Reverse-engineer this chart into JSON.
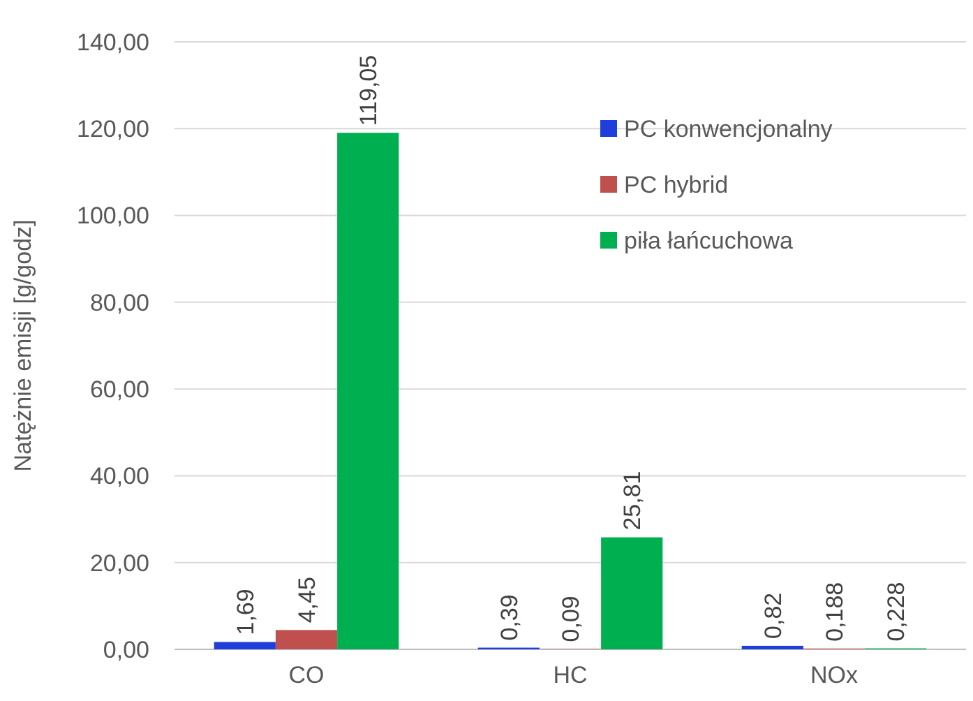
{
  "chart_data": {
    "type": "bar",
    "ylabel": "Natężnie emisji [g/godz]",
    "categories": [
      "CO",
      "HC",
      "NOx"
    ],
    "series": [
      {
        "name": "PC konwencjonalny",
        "color": "#1f3fdc",
        "values": [
          1.69,
          0.39,
          0.82
        ],
        "value_labels": [
          "1,69",
          "0,39",
          "0,82"
        ]
      },
      {
        "name": "PC hybrid",
        "color": "#c0504d",
        "values": [
          4.45,
          0.09,
          0.188
        ],
        "value_labels": [
          "4,45",
          "0,09",
          "0,188"
        ]
      },
      {
        "name": "piła łańcuchowa",
        "color": "#00b050",
        "values": [
          119.05,
          25.81,
          0.228
        ],
        "value_labels": [
          "119,05",
          "25,81",
          "0,228"
        ]
      }
    ],
    "ylim": [
      0,
      140
    ],
    "yticks": [
      {
        "value": 0,
        "label": "0,00"
      },
      {
        "value": 20,
        "label": "20,00"
      },
      {
        "value": 40,
        "label": "40,00"
      },
      {
        "value": 60,
        "label": "60,00"
      },
      {
        "value": 80,
        "label": "80,00"
      },
      {
        "value": 100,
        "label": "100,00"
      },
      {
        "value": 120,
        "label": "120,00"
      },
      {
        "value": 140,
        "label": "140,00"
      }
    ],
    "grid": "y",
    "legend": "top right"
  }
}
